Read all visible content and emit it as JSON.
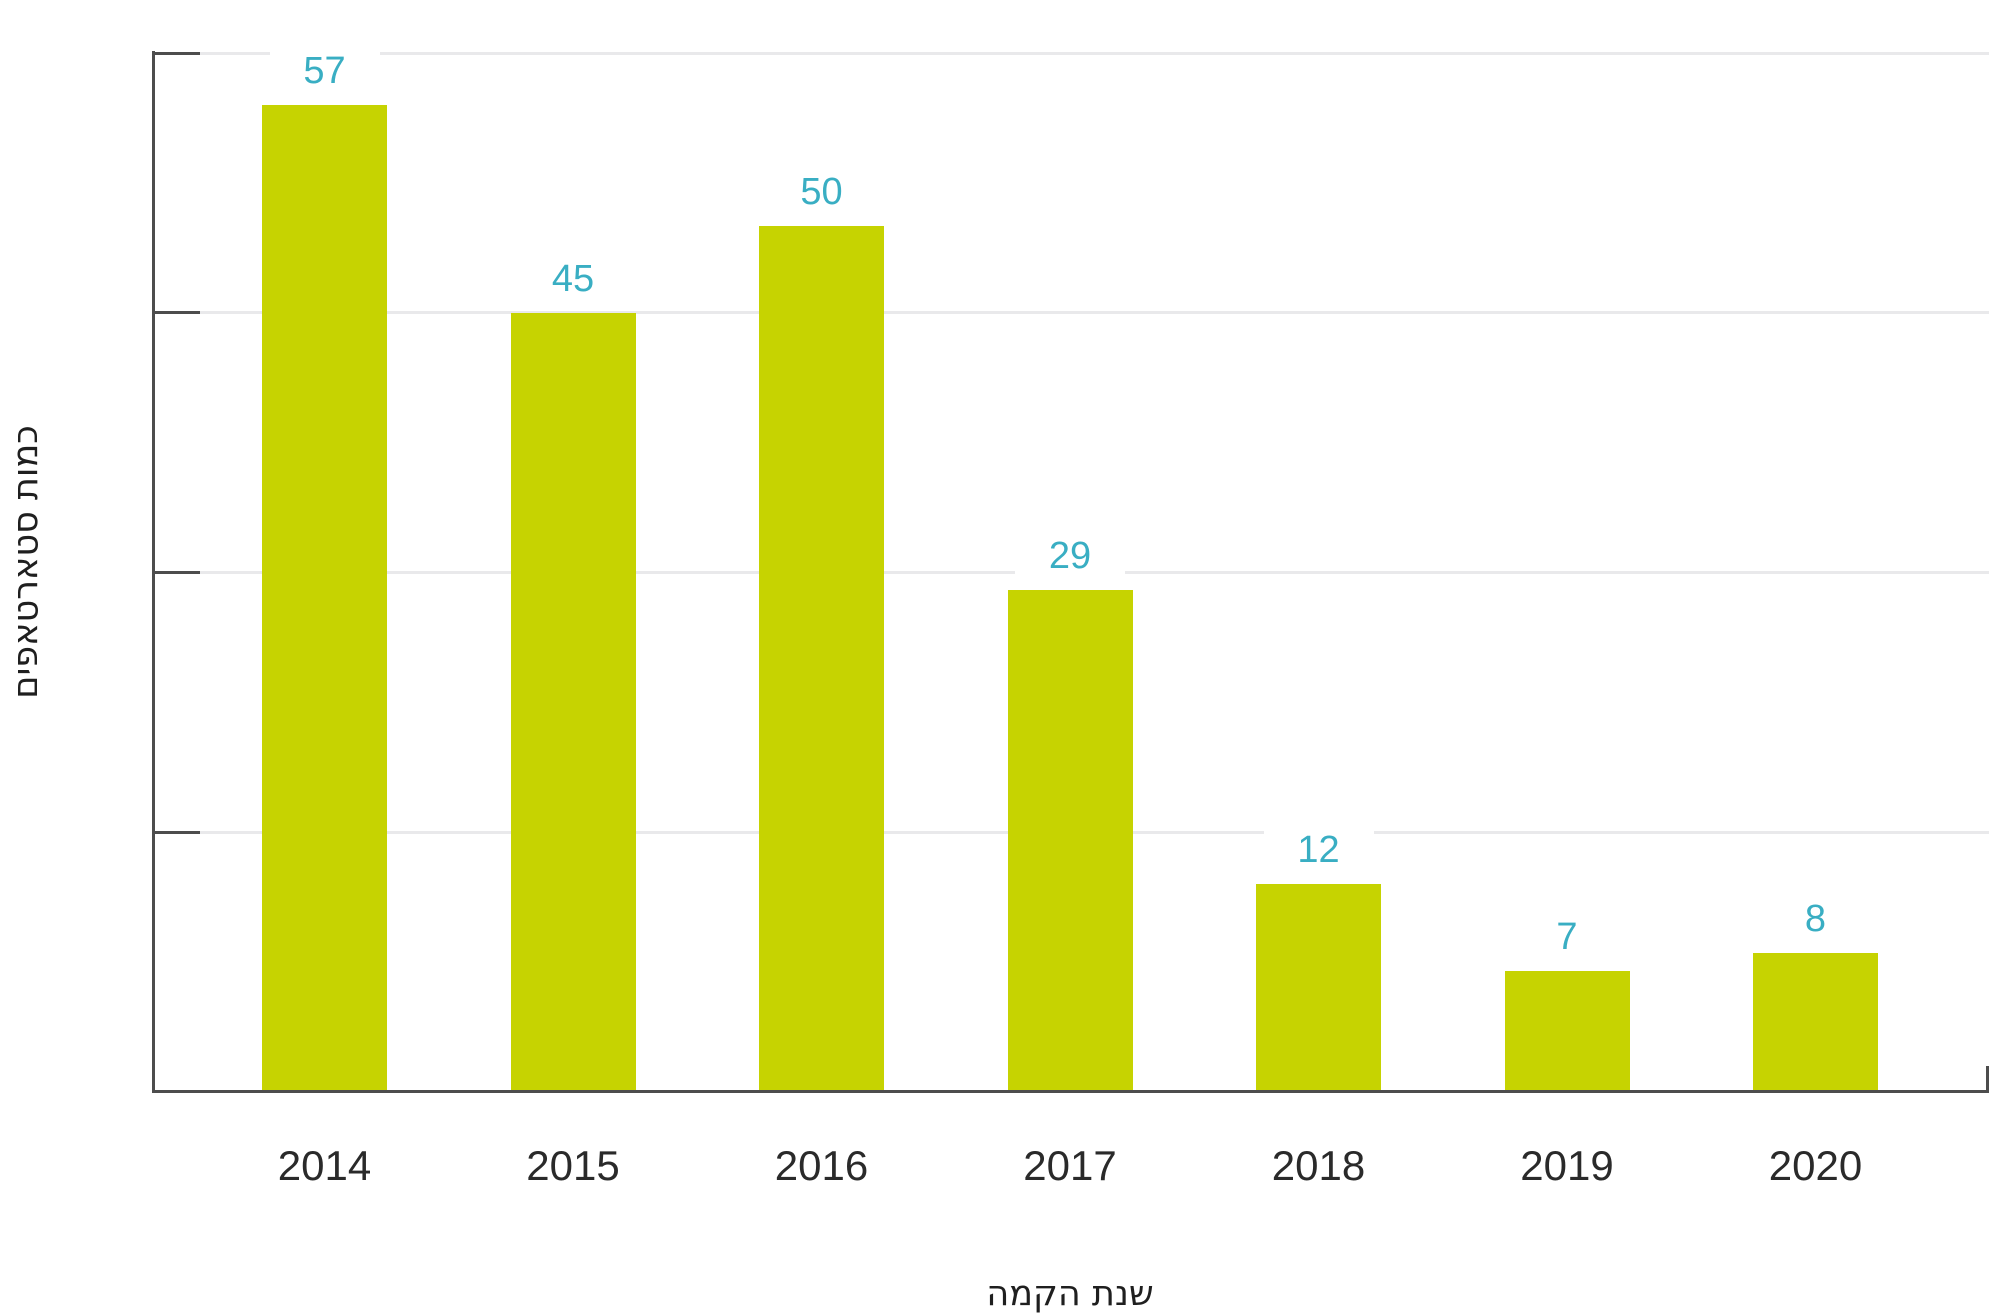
{
  "chart_data": {
    "type": "bar",
    "title": "",
    "categories": [
      "2014",
      "2015",
      "2016",
      "2017",
      "2018",
      "2019",
      "2020"
    ],
    "values": [
      57,
      45,
      50,
      29,
      12,
      7,
      8
    ],
    "xlabel": "שנת הקמה",
    "ylabel": "כמות סטארטאפים",
    "ylim": [
      0,
      60
    ],
    "yticks": [
      15,
      30,
      45,
      60
    ],
    "y_tick_labels_visible": false,
    "grid": true,
    "legend": false,
    "value_labels_visible": true,
    "colors": {
      "background": "#ffffff",
      "bar": "#c6d301",
      "value_label": "#39aec3",
      "axis": "#4d4d4d",
      "gridline": "#e9e9eb",
      "category_label": "#2a2a2a",
      "axis_title": "#1f1f1f"
    }
  }
}
